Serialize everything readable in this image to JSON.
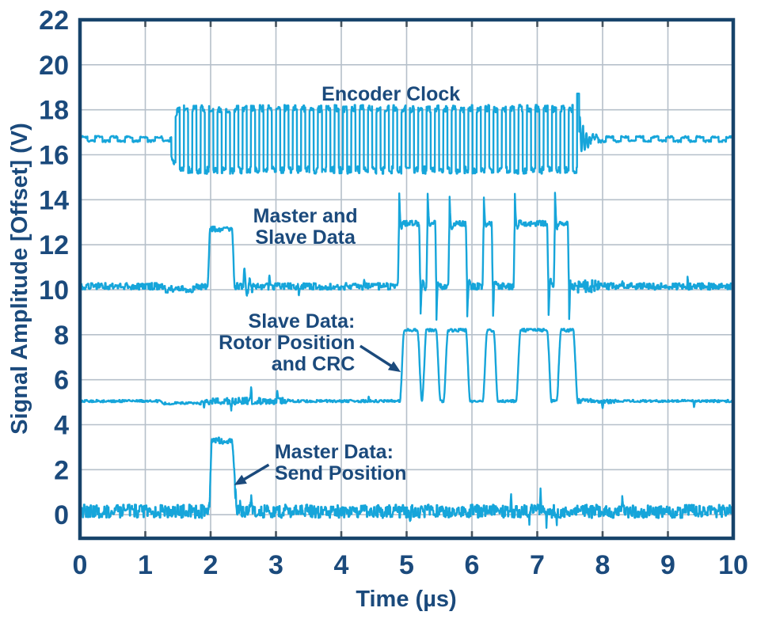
{
  "colors": {
    "background": "#ffffff",
    "axis_border": "#17436a",
    "text_navy": "#1b4a7c",
    "gridline": "#b6c0ca",
    "tick_stub": "#47535d",
    "trace_cyan": "#16a5da"
  },
  "chart_data": {
    "type": "line",
    "title": "",
    "xlabel": "Time (µs)",
    "ylabel": "Signal Amplitude [Offset] (V)",
    "xlim": [
      0,
      10
    ],
    "ylim": [
      -1.05,
      22
    ],
    "xticks": [
      0,
      1,
      2,
      3,
      4,
      5,
      6,
      7,
      8,
      9,
      10
    ],
    "yticks": [
      0,
      2,
      4,
      6,
      8,
      10,
      12,
      14,
      16,
      18,
      20,
      22
    ],
    "grid": true,
    "legend": "inline-annotations",
    "series": [
      {
        "name": "Encoder Clock",
        "kind": "clock",
        "idle_level": 16.7,
        "idle_ripple": 0.09,
        "edge_noise": 0.17,
        "burst": {
          "start": 1.4,
          "end": 7.64,
          "period": 0.128,
          "high": 18.05,
          "low": 15.32
        },
        "end_spike": 18.72,
        "ringdown": {
          "amp": 1.0,
          "tau": 0.1,
          "period": 0.05
        }
      },
      {
        "name": "Master and Slave Data",
        "kind": "digital",
        "baseline": 10.15,
        "noise": 0.15,
        "noise_hold": 0.012,
        "high_level": 12.95,
        "top_noise": 0.12,
        "rise_time": 0.022,
        "overshoot": 14.25,
        "undershoot": 8.72,
        "pulses": [
          {
            "s": 1.95,
            "e": 2.325,
            "level": 12.7,
            "rise": 0.045,
            "transients": false
          },
          {
            "s": 4.865,
            "e": 5.19,
            "transients": true
          },
          {
            "s": 5.3,
            "e": 5.435,
            "transients": true
          },
          {
            "s": 5.635,
            "e": 5.905,
            "transients": true
          },
          {
            "s": 6.16,
            "e": 6.3,
            "transients": true
          },
          {
            "s": 6.635,
            "e": 7.15,
            "transients": true
          },
          {
            "s": 7.25,
            "e": 7.465,
            "transients": true
          }
        ],
        "ringing": {
          "t": 2.5,
          "amp": 1.0,
          "period": 0.078,
          "decay": 0.065,
          "until": 2.78
        },
        "dips": [
          [
            1.3,
            1.78,
            -0.13
          ]
        ],
        "noisy_zones": [
          [
            7.5,
            7.95,
            0.28
          ]
        ],
        "spikes": [
          [
            2.9,
            0.4
          ],
          [
            3.35,
            -0.3
          ],
          [
            4.35,
            0.3
          ],
          [
            8.3,
            0.35
          ],
          [
            9.3,
            0.3
          ]
        ]
      },
      {
        "name": "Slave Data: Rotor Position and CRC",
        "kind": "digital",
        "baseline": 5.05,
        "noise": 0.055,
        "noise_hold": 0.012,
        "high_level": 8.2,
        "top_noise": 0.07,
        "rise_time": 0.07,
        "pulses": [
          {
            "s": 4.895,
            "e": 5.165
          },
          {
            "s": 5.235,
            "e": 5.45
          },
          {
            "s": 5.565,
            "e": 5.905
          },
          {
            "s": 6.165,
            "e": 6.33
          },
          {
            "s": 6.675,
            "e": 7.15
          },
          {
            "s": 7.295,
            "e": 7.55
          }
        ],
        "dips": [
          [
            1.25,
            1.85,
            -0.1
          ]
        ],
        "noisy_zones": [
          [
            1.95,
            3.2,
            0.16
          ],
          [
            7.55,
            8.2,
            0.1
          ]
        ],
        "spikes": [
          [
            1.9,
            -0.35
          ],
          [
            2.32,
            -0.4
          ],
          [
            2.62,
            0.5
          ],
          [
            3.02,
            0.35
          ],
          [
            4.42,
            0.2
          ],
          [
            8.0,
            -0.3
          ],
          [
            9.4,
            -0.3
          ]
        ]
      },
      {
        "name": "Master Data: Send Position",
        "kind": "digital",
        "baseline": 0.15,
        "noise": 0.3,
        "noise_hold": 0.01,
        "high_level": 3.3,
        "top_noise": 0.15,
        "rise_time": 0.045,
        "fall_time": 0.09,
        "pulses": [
          {
            "s": 1.975,
            "e": 2.32
          }
        ],
        "spikes": [
          [
            2.45,
            0.45
          ],
          [
            2.62,
            0.7
          ],
          [
            5.05,
            -0.5
          ],
          [
            6.6,
            0.85
          ],
          [
            6.88,
            -0.7
          ],
          [
            7.05,
            1.0
          ],
          [
            7.14,
            -0.85
          ],
          [
            7.3,
            -0.6
          ],
          [
            8.3,
            0.5
          ]
        ]
      }
    ],
    "annotations": [
      {
        "lines": [
          "Encoder Clock"
        ],
        "anchor": "middle",
        "t": 4.76,
        "v": 18.41
      },
      {
        "lines": [
          "Master and",
          "Slave Data"
        ],
        "anchor": "middle",
        "t": 3.45,
        "v": 12.99
      },
      {
        "lines": [
          "Slave Data:",
          "Rotor Position",
          "and CRC"
        ],
        "anchor": "end",
        "t": 4.21,
        "v": 8.31,
        "arrow": {
          "t1": 4.29,
          "v1": 7.5,
          "t2": 4.91,
          "v2": 6.34
        }
      },
      {
        "lines": [
          "Master Data:",
          "Send Position"
        ],
        "anchor": "start",
        "t": 2.98,
        "v": 2.51,
        "arrow": {
          "t1": 2.89,
          "v1": 2.22,
          "t2": 2.36,
          "v2": 1.31
        }
      }
    ]
  }
}
